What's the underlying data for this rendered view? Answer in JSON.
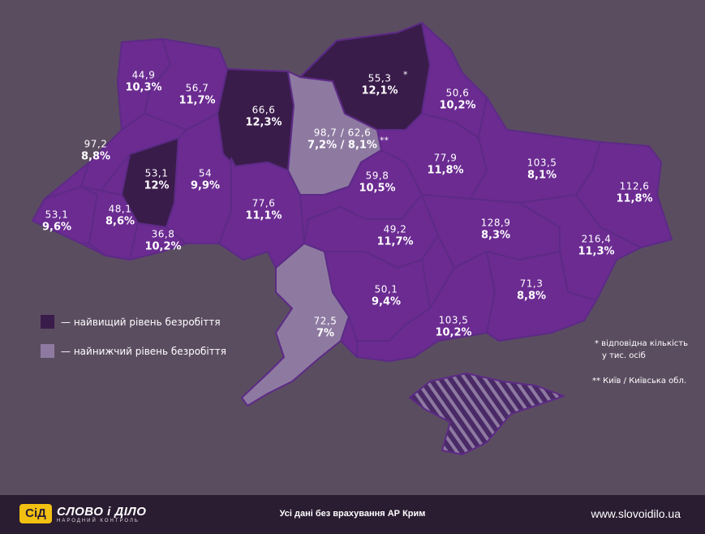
{
  "colors": {
    "background": "#5b4d60",
    "region_default": "#6b2b91",
    "region_highest": "#3a1c4b",
    "region_lowest": "#8e7aa1",
    "crimea": "#4a2a66",
    "footer": "#2a1c31",
    "logo_accent": "#f2c011"
  },
  "regions": [
    {
      "id": "volyn",
      "count": "44,9",
      "pct": "10,3%",
      "level": "normal"
    },
    {
      "id": "rivne",
      "count": "56,7",
      "pct": "11,7%",
      "level": "normal"
    },
    {
      "id": "zhytomyr",
      "count": "66,6",
      "pct": "12,3%",
      "level": "highest"
    },
    {
      "id": "kyiv",
      "count": "98,7 / 62,6",
      "pct": "7,2% / 8,1%",
      "marker": "**",
      "level": "lowest"
    },
    {
      "id": "chernihiv",
      "count": "55,3",
      "pct": "12,1%",
      "marker": "*",
      "level": "highest"
    },
    {
      "id": "sumy",
      "count": "50,6",
      "pct": "10,2%",
      "level": "normal"
    },
    {
      "id": "lviv",
      "count": "97,2",
      "pct": "8,8%",
      "level": "normal"
    },
    {
      "id": "ternopil",
      "count": "53,1",
      "pct": "12%",
      "level": "highest"
    },
    {
      "id": "khmelnytskyi",
      "count": "54",
      "pct": "9,9%",
      "level": "normal"
    },
    {
      "id": "vinnytsia",
      "count": "77,6",
      "pct": "11,1%",
      "level": "normal"
    },
    {
      "id": "cherkasy",
      "count": "59,8",
      "pct": "10,5%",
      "level": "normal"
    },
    {
      "id": "poltava",
      "count": "77,9",
      "pct": "11,8%",
      "level": "normal"
    },
    {
      "id": "kharkiv",
      "count": "103,5",
      "pct": "8,1%",
      "level": "normal"
    },
    {
      "id": "luhansk",
      "count": "112,6",
      "pct": "11,8%",
      "level": "normal"
    },
    {
      "id": "zakarpattia",
      "count": "53,1",
      "pct": "9,6%",
      "level": "normal"
    },
    {
      "id": "ivano-frankivsk",
      "count": "48,1",
      "pct": "8,6%",
      "level": "normal"
    },
    {
      "id": "chernivtsi",
      "count": "36,8",
      "pct": "10,2%",
      "level": "normal"
    },
    {
      "id": "kirovohrad",
      "count": "49,2",
      "pct": "11,7%",
      "level": "normal"
    },
    {
      "id": "dnipropetrovsk",
      "count": "128,9",
      "pct": "8,3%",
      "level": "normal"
    },
    {
      "id": "donetsk",
      "count": "216,4",
      "pct": "11,3%",
      "level": "normal"
    },
    {
      "id": "odesa",
      "count": "72,5",
      "pct": "7%",
      "level": "lowest"
    },
    {
      "id": "mykolaiv",
      "count": "50,1",
      "pct": "9,4%",
      "level": "normal"
    },
    {
      "id": "kherson",
      "count": "103,5",
      "pct": "10,2%",
      "level": "normal"
    },
    {
      "id": "zaporizhzhia",
      "count": "71,3",
      "pct": "8,8%",
      "level": "normal"
    }
  ],
  "legend": {
    "highest": "— найвищий рівень безробіття",
    "lowest": "— найнижчий рівень безробіття"
  },
  "notes": {
    "single_line1": "* відповідна кількість",
    "single_line2": "у тис. осіб",
    "double": "** Київ / Київська обл."
  },
  "footer": {
    "logo_mark": "СіД",
    "logo_name": "СЛОВО і ДІЛО",
    "logo_tagline": "НАРОДНИЙ КОНТРОЛЬ",
    "note": "Усі дані без врахування АР Крим",
    "website": "www.slovoidilo.ua"
  }
}
